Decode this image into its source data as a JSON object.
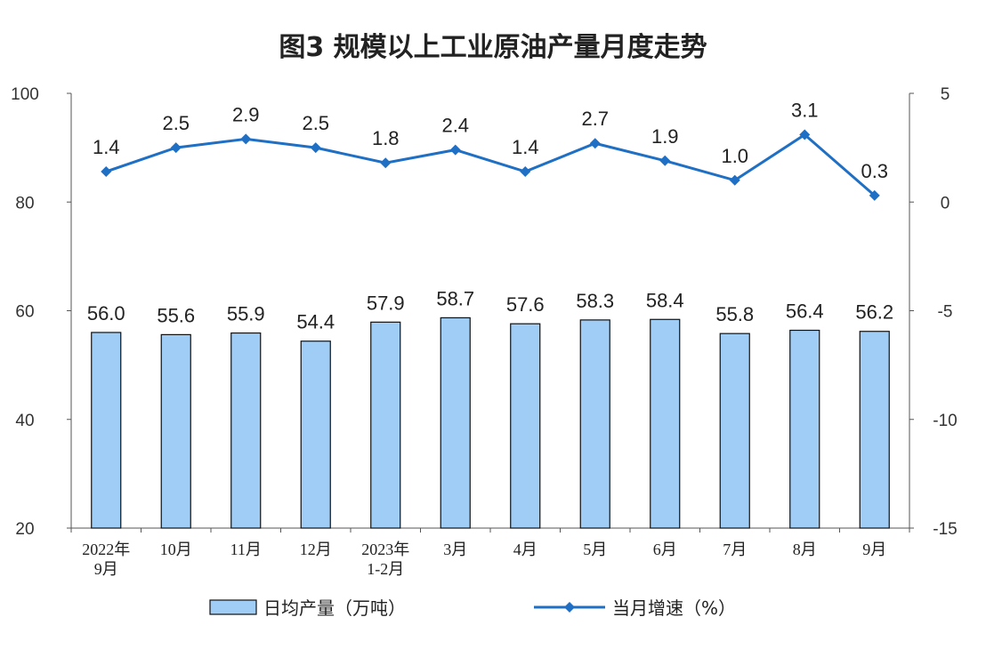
{
  "chart_data": {
    "type": "bar",
    "title": "图3  规模以上工业原油产量月度走势",
    "categories": [
      [
        "2022年",
        "9月"
      ],
      [
        "10月"
      ],
      [
        "11月"
      ],
      [
        "12月"
      ],
      [
        "2023年",
        "1-2月"
      ],
      [
        "3月"
      ],
      [
        "4月"
      ],
      [
        "5月"
      ],
      [
        "6月"
      ],
      [
        "7月"
      ],
      [
        "8月"
      ],
      [
        "9月"
      ]
    ],
    "series": [
      {
        "name": "日均产量（万吨）",
        "type": "bar",
        "axis": "left",
        "color": "#9fcdf5",
        "values": [
          56.0,
          55.6,
          55.9,
          54.4,
          57.9,
          58.7,
          57.6,
          58.3,
          58.4,
          55.8,
          56.4,
          56.2
        ],
        "labels": [
          "56.0",
          "55.6",
          "55.9",
          "54.4",
          "57.9",
          "58.7",
          "57.6",
          "58.3",
          "58.4",
          "55.8",
          "56.4",
          "56.2"
        ]
      },
      {
        "name": "当月增速（%）",
        "type": "line",
        "axis": "right",
        "color": "#1f6fc4",
        "values": [
          1.4,
          2.5,
          2.9,
          2.5,
          1.8,
          2.4,
          1.4,
          2.7,
          1.9,
          1.0,
          3.1,
          0.3
        ],
        "labels": [
          "1.4",
          "2.5",
          "2.9",
          "2.5",
          "1.8",
          "2.4",
          "1.4",
          "2.7",
          "1.9",
          "1.0",
          "3.1",
          "0.3"
        ]
      }
    ],
    "y_left": {
      "range": [
        20,
        100
      ],
      "ticks": [
        "20",
        "40",
        "60",
        "80",
        "100"
      ]
    },
    "y_right": {
      "range": [
        -15,
        5
      ],
      "ticks": [
        "-15",
        "-10",
        "-5",
        "0",
        "5"
      ]
    },
    "grid": false,
    "legend_position": "bottom"
  }
}
